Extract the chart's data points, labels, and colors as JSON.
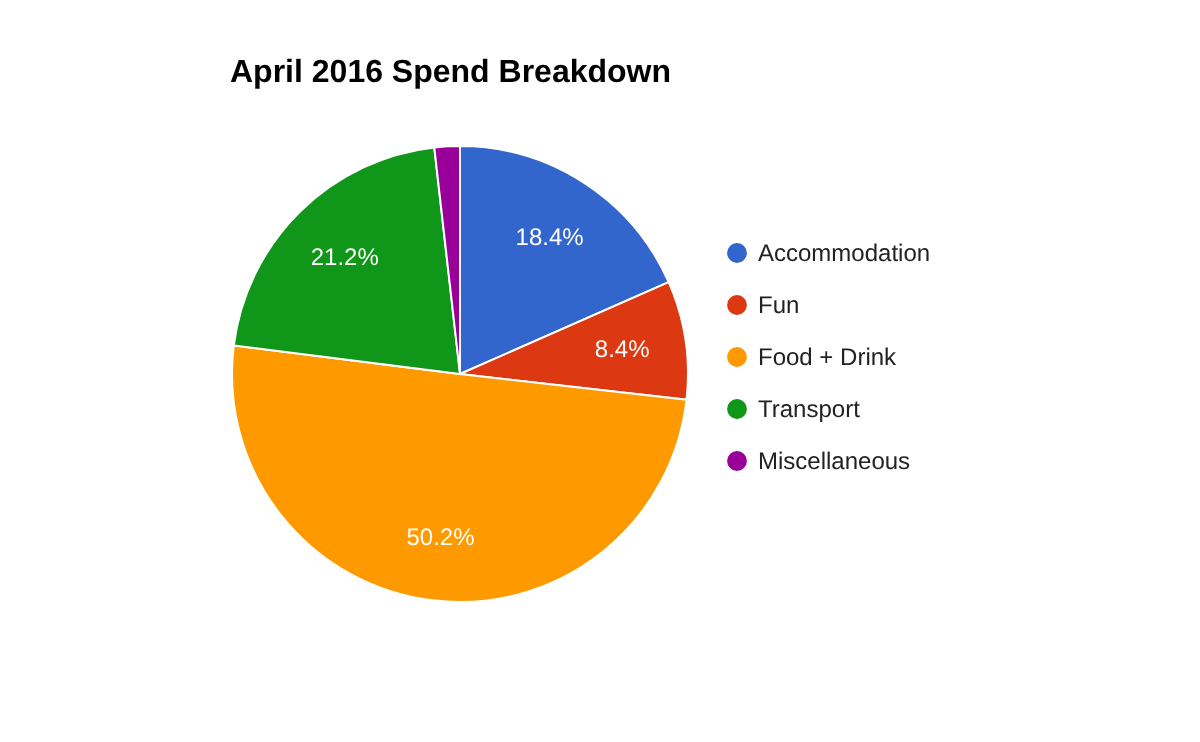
{
  "chart_data": {
    "type": "pie",
    "title": "April 2016 Spend Breakdown",
    "categories": [
      "Accommodation",
      "Fun",
      "Food + Drink",
      "Transport",
      "Miscellaneous"
    ],
    "values": [
      18.4,
      8.4,
      50.2,
      21.2,
      1.8
    ],
    "value_labels": [
      "18.4%",
      "8.4%",
      "50.2%",
      "21.2%",
      null
    ],
    "colors": [
      "#3366cc",
      "#dc3912",
      "#ff9900",
      "#109618",
      "#990099"
    ],
    "legend": "right"
  }
}
